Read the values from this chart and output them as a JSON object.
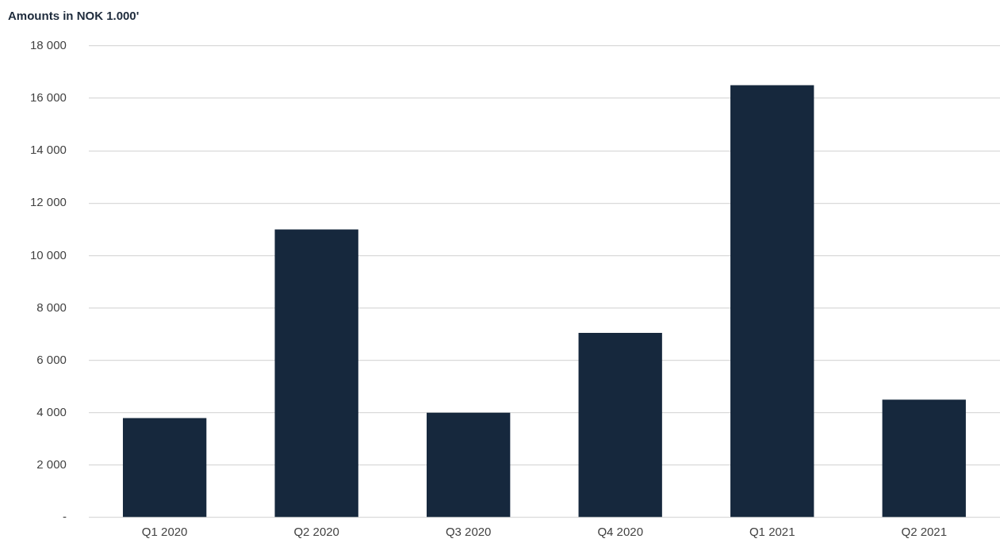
{
  "chart_data": {
    "type": "bar",
    "title": "Amounts in NOK 1.000'",
    "categories": [
      "Q1 2020",
      "Q2 2020",
      "Q3 2020",
      "Q4 2020",
      "Q1 2021",
      "Q2 2021"
    ],
    "values": [
      3800,
      11000,
      4000,
      7050,
      16500,
      4500
    ],
    "color": "#16283d",
    "ylim": [
      0,
      18000
    ],
    "yticks": [
      {
        "value": 0,
        "label": "-"
      },
      {
        "value": 2000,
        "label": "2 000"
      },
      {
        "value": 4000,
        "label": "4 000"
      },
      {
        "value": 6000,
        "label": "6 000"
      },
      {
        "value": 8000,
        "label": "8 000"
      },
      {
        "value": 10000,
        "label": "10 000"
      },
      {
        "value": 12000,
        "label": "12 000"
      },
      {
        "value": 14000,
        "label": "14 000"
      },
      {
        "value": 16000,
        "label": "16 000"
      },
      {
        "value": 18000,
        "label": "18 000"
      }
    ],
    "grid": "y"
  }
}
